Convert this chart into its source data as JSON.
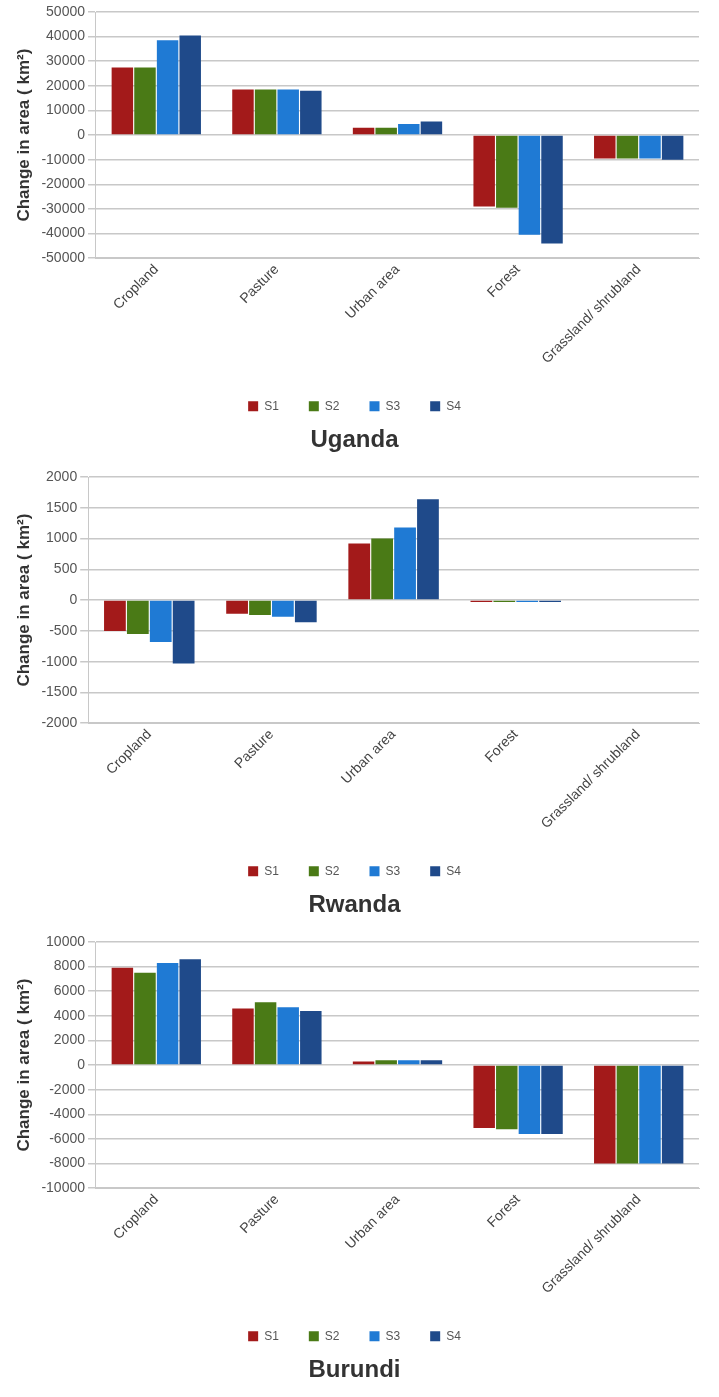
{
  "chart_data": [
    {
      "type": "bar",
      "title": "Uganda",
      "ylabel": "Change in area ( km²)",
      "categories": [
        "Cropland",
        "Pasture",
        "Urban area",
        "Forest",
        "Grassland/ shrubland"
      ],
      "series": [
        {
          "name": "S1",
          "color": "#a31a1a",
          "values": [
            27500,
            18500,
            3000,
            -29000,
            -9500
          ]
        },
        {
          "name": "S2",
          "color": "#4a7a16",
          "values": [
            27500,
            18500,
            3000,
            -29500,
            -9500
          ]
        },
        {
          "name": "S3",
          "color": "#1f7ad4",
          "values": [
            38500,
            18500,
            4500,
            -40500,
            -9500
          ]
        },
        {
          "name": "S4",
          "color": "#1f4a8a",
          "values": [
            40500,
            18000,
            5500,
            -44000,
            -10000
          ]
        }
      ],
      "ylim": [
        -50000,
        50000
      ],
      "yticks": [
        -50000,
        -40000,
        -30000,
        -20000,
        -10000,
        0,
        10000,
        20000,
        30000,
        40000,
        50000
      ],
      "grid": "y",
      "legend": "bottom"
    },
    {
      "type": "bar",
      "title": "Rwanda",
      "ylabel": "Change in area ( km²)",
      "categories": [
        "Cropland",
        "Pasture",
        "Urban area",
        "Forest",
        "Grassland/ shrubland"
      ],
      "series": [
        {
          "name": "S1",
          "color": "#a31a1a",
          "values": [
            -500,
            -220,
            920,
            -30,
            0
          ]
        },
        {
          "name": "S2",
          "color": "#4a7a16",
          "values": [
            -550,
            -240,
            1000,
            -30,
            0
          ]
        },
        {
          "name": "S3",
          "color": "#1f7ad4",
          "values": [
            -680,
            -270,
            1180,
            -30,
            0
          ]
        },
        {
          "name": "S4",
          "color": "#1f4a8a",
          "values": [
            -1030,
            -360,
            1640,
            -30,
            0
          ]
        }
      ],
      "ylim": [
        -2000,
        2000
      ],
      "yticks": [
        -2000,
        -1500,
        -1000,
        -500,
        0,
        500,
        1000,
        1500,
        2000
      ],
      "grid": "y",
      "legend": "bottom"
    },
    {
      "type": "bar",
      "title": "Burundi",
      "ylabel": "Change in area ( km²)",
      "categories": [
        "Cropland",
        "Pasture",
        "Urban area",
        "Forest",
        "Grassland/ shrubland"
      ],
      "series": [
        {
          "name": "S1",
          "color": "#a31a1a",
          "values": [
            7900,
            4600,
            300,
            -5100,
            -8000
          ]
        },
        {
          "name": "S2",
          "color": "#4a7a16",
          "values": [
            7500,
            5100,
            400,
            -5200,
            -8000
          ]
        },
        {
          "name": "S3",
          "color": "#1f7ad4",
          "values": [
            8300,
            4700,
            400,
            -5600,
            -8000
          ]
        },
        {
          "name": "S4",
          "color": "#1f4a8a",
          "values": [
            8600,
            4400,
            400,
            -5600,
            -8000
          ]
        }
      ],
      "ylim": [
        -10000,
        10000
      ],
      "yticks": [
        -10000,
        -8000,
        -6000,
        -4000,
        -2000,
        0,
        2000,
        4000,
        6000,
        8000,
        10000
      ],
      "grid": "y",
      "legend": "bottom"
    }
  ]
}
